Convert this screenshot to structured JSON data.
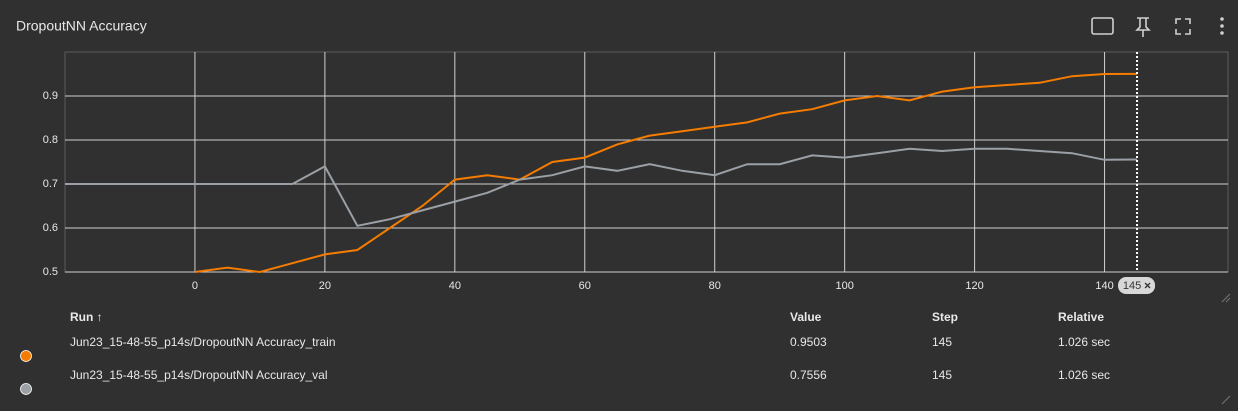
{
  "chart_data": {
    "type": "line",
    "title": "DropoutNN Accuracy",
    "x": [
      -20,
      -15,
      -10,
      -5,
      0,
      5,
      10,
      15,
      20,
      25,
      30,
      35,
      40,
      45,
      50,
      55,
      60,
      65,
      70,
      75,
      80,
      85,
      90,
      95,
      100,
      105,
      110,
      115,
      120,
      125,
      130,
      135,
      140,
      145
    ],
    "series": [
      {
        "name": "Jun23_15-48-55_p14s/DropoutNN Accuracy_train",
        "color": "#f57c00",
        "values": [
          null,
          null,
          null,
          null,
          0.5,
          0.51,
          0.5,
          0.52,
          0.54,
          0.55,
          0.6,
          0.65,
          0.71,
          0.72,
          0.71,
          0.75,
          0.76,
          0.79,
          0.81,
          0.82,
          0.83,
          0.84,
          0.86,
          0.87,
          0.89,
          0.9,
          0.89,
          0.91,
          0.92,
          0.925,
          0.93,
          0.945,
          0.95,
          0.9503
        ]
      },
      {
        "name": "Jun23_15-48-55_p14s/DropoutNN Accuracy_val",
        "color": "#9aa0a6",
        "values": [
          0.7,
          0.7,
          0.7,
          0.7,
          0.7,
          0.7,
          0.7,
          0.7,
          0.74,
          0.605,
          0.62,
          0.64,
          0.66,
          0.68,
          0.71,
          0.72,
          0.74,
          0.73,
          0.745,
          0.73,
          0.72,
          0.745,
          0.745,
          0.765,
          0.76,
          0.77,
          0.78,
          0.775,
          0.78,
          0.78,
          0.775,
          0.77,
          0.755,
          0.7556
        ]
      }
    ],
    "xlim": [
      -20,
      159
    ],
    "ylim": [
      0.5,
      1.0
    ],
    "xticks": [
      0,
      20,
      40,
      60,
      80,
      100,
      120,
      140
    ],
    "yticks": [
      0.5,
      0.6,
      0.7,
      0.8,
      0.9
    ],
    "grid": true,
    "cursor": 145
  },
  "table": {
    "header": [
      "Run ↑",
      "Value",
      "Step",
      "Relative"
    ],
    "rows": [
      [
        "Jun23_15-48-55_p14s/DropoutNN Accuracy_train",
        "0.9503",
        "145",
        "1.026 sec"
      ],
      [
        "Jun23_15-48-55_p14s/DropoutNN Accuracy_val",
        "0.7556",
        "145",
        "1.026 sec"
      ]
    ]
  }
}
